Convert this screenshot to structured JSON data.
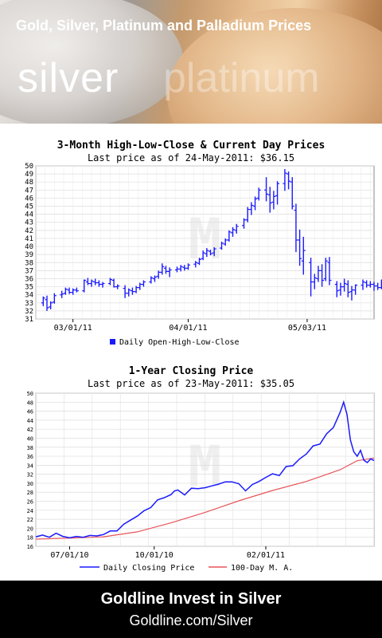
{
  "banner": {
    "title": "Gold, Silver, Platinum and Palladium Prices",
    "word_active": "silver",
    "word_inactive": "platinum"
  },
  "chart1": {
    "title": "3-Month High-Low-Close & Current Day Prices",
    "subtitle": "Last price as of 24-May-2011: $36.15",
    "legend": "Daily Open-High-Low-Close"
  },
  "chart2": {
    "title": "1-Year Closing Price",
    "subtitle": "Last price as of 23-May-2011: $35.05",
    "legend_closing": "Daily Closing Price",
    "legend_ma": "100-Day M. A."
  },
  "footer": {
    "title": "Goldline Invest in Silver",
    "url": "Goldline.com/Silver"
  },
  "colors": {
    "series": "#1a1aff",
    "moving_average": "#e8555a",
    "footer_bg": "#000000"
  },
  "chart_data": [
    {
      "type": "bar",
      "subtype": "ohlc",
      "title": "3-Month High-Low-Close & Current Day Prices",
      "subtitle": "Last price as of 24-May-2011: $36.15",
      "ylim": [
        31,
        50
      ],
      "yticks": [
        31,
        32,
        33,
        34,
        35,
        36,
        37,
        38,
        39,
        40,
        41,
        42,
        43,
        44,
        45,
        46,
        47,
        48,
        49,
        50
      ],
      "xticks": [
        {
          "label": "03/01/11",
          "day": 10
        },
        {
          "label": "04/01/11",
          "day": 41
        },
        {
          "label": "05/03/11",
          "day": 73
        }
      ],
      "xrange": [
        0,
        91
      ],
      "legend": "Daily Open-High-Low-Close",
      "grid": true,
      "ohlc": [
        [
          2,
          33.0,
          33.8,
          32.6,
          33.6
        ],
        [
          3,
          33.4,
          33.9,
          32.0,
          32.4
        ],
        [
          4,
          32.5,
          33.2,
          32.2,
          33.0
        ],
        [
          5,
          33.1,
          34.2,
          32.9,
          33.9
        ],
        [
          7,
          34.0,
          34.5,
          33.6,
          34.1
        ],
        [
          8,
          34.2,
          34.9,
          34.0,
          34.7
        ],
        [
          9,
          34.6,
          34.9,
          34.1,
          34.3
        ],
        [
          10,
          34.3,
          34.8,
          34.0,
          34.6
        ],
        [
          11,
          34.6,
          34.9,
          34.3,
          34.5
        ],
        [
          13,
          34.5,
          35.9,
          34.3,
          35.8
        ],
        [
          14,
          35.6,
          36.1,
          35.2,
          35.4
        ],
        [
          15,
          35.4,
          35.9,
          35.0,
          35.7
        ],
        [
          16,
          35.6,
          36.0,
          35.2,
          35.5
        ],
        [
          17,
          35.5,
          35.8,
          35.0,
          35.3
        ],
        [
          18,
          35.3,
          35.6,
          34.9,
          35.4
        ],
        [
          20,
          35.4,
          36.1,
          35.2,
          35.9
        ],
        [
          21,
          35.8,
          36.0,
          34.9,
          35.0
        ],
        [
          22,
          35.0,
          35.3,
          34.7,
          35.1
        ],
        [
          24,
          34.8,
          35.2,
          33.6,
          34.2
        ],
        [
          25,
          34.2,
          34.8,
          33.8,
          34.6
        ],
        [
          26,
          34.5,
          34.9,
          34.0,
          34.4
        ],
        [
          27,
          34.4,
          35.1,
          34.2,
          34.9
        ],
        [
          28,
          34.9,
          35.5,
          34.6,
          35.3
        ],
        [
          29,
          35.3,
          35.8,
          35.0,
          35.6
        ],
        [
          31,
          35.6,
          36.3,
          35.4,
          36.1
        ],
        [
          32,
          36.0,
          36.4,
          35.6,
          36.2
        ],
        [
          33,
          36.3,
          37.0,
          36.0,
          36.8
        ],
        [
          34,
          36.8,
          37.9,
          36.5,
          37.5
        ],
        [
          35,
          37.3,
          37.6,
          36.6,
          36.9
        ],
        [
          36,
          36.9,
          37.4,
          36.2,
          37.1
        ],
        [
          38,
          37.1,
          37.5,
          36.8,
          37.2
        ],
        [
          39,
          37.2,
          37.7,
          36.9,
          37.5
        ],
        [
          40,
          37.4,
          37.7,
          37.0,
          37.3
        ],
        [
          41,
          37.3,
          37.9,
          37.1,
          37.7
        ],
        [
          43,
          37.8,
          38.2,
          37.4,
          38.0
        ],
        [
          44,
          37.9,
          38.6,
          37.7,
          38.4
        ],
        [
          45,
          38.5,
          39.5,
          38.3,
          39.2
        ],
        [
          46,
          39.1,
          39.8,
          38.7,
          39.5
        ],
        [
          47,
          39.4,
          39.6,
          38.9,
          39.1
        ],
        [
          48,
          39.2,
          39.9,
          38.8,
          39.7
        ],
        [
          50,
          39.8,
          40.6,
          39.6,
          40.4
        ],
        [
          51,
          40.3,
          41.0,
          40.1,
          40.8
        ],
        [
          52,
          40.8,
          42.0,
          40.6,
          41.8
        ],
        [
          53,
          41.7,
          42.4,
          41.2,
          42.1
        ],
        [
          54,
          42.0,
          42.8,
          41.6,
          42.5
        ],
        [
          56,
          42.6,
          43.5,
          42.2,
          43.3
        ],
        [
          57,
          43.3,
          44.9,
          43.0,
          44.6
        ],
        [
          58,
          44.6,
          45.5,
          43.9,
          45.1
        ],
        [
          59,
          45.0,
          46.2,
          44.5,
          45.9
        ],
        [
          60,
          46.0,
          47.3,
          45.7,
          47.0
        ],
        [
          62,
          47.0,
          48.6,
          45.6,
          46.5
        ],
        [
          63,
          46.4,
          47.4,
          44.2,
          45.4
        ],
        [
          64,
          45.5,
          46.9,
          44.6,
          46.2
        ],
        [
          65,
          46.3,
          48.1,
          45.2,
          47.8
        ],
        [
          67,
          47.8,
          49.6,
          46.9,
          49.1
        ],
        [
          68,
          49.0,
          49.3,
          47.1,
          48.1
        ],
        [
          69,
          48.0,
          48.6,
          44.6,
          45.0
        ],
        [
          70,
          44.5,
          45.3,
          39.3,
          40.8
        ],
        [
          71,
          40.8,
          42.1,
          37.6,
          38.5
        ],
        [
          72,
          38.2,
          41.2,
          36.5,
          39.5
        ],
        [
          74,
          38.0,
          38.6,
          33.8,
          35.6
        ],
        [
          75,
          35.6,
          36.6,
          34.7,
          36.1
        ],
        [
          76,
          36.0,
          37.6,
          35.6,
          37.0
        ],
        [
          77,
          37.0,
          37.8,
          35.0,
          35.8
        ],
        [
          78,
          36.0,
          38.6,
          35.7,
          38.2
        ],
        [
          79,
          38.0,
          38.7,
          35.2,
          35.8
        ],
        [
          81,
          35.3,
          35.7,
          33.7,
          34.5
        ],
        [
          82,
          34.6,
          35.5,
          33.9,
          35.0
        ],
        [
          83,
          35.0,
          36.0,
          34.4,
          35.4
        ],
        [
          84,
          35.3,
          35.8,
          33.7,
          34.3
        ],
        [
          85,
          34.4,
          35.1,
          33.3,
          34.6
        ],
        [
          86,
          34.6,
          35.3,
          34.0,
          35.2
        ],
        [
          88,
          35.2,
          35.9,
          34.6,
          35.6
        ],
        [
          89,
          35.5,
          35.8,
          34.9,
          35.2
        ],
        [
          90,
          35.2,
          35.7,
          34.9,
          35.3
        ],
        [
          91,
          35.3,
          35.6,
          34.5,
          35.1
        ],
        [
          92,
          35.1,
          35.5,
          34.6,
          34.9
        ],
        [
          93,
          34.9,
          35.9,
          34.7,
          35.7
        ],
        [
          94,
          35.7,
          36.5,
          35.5,
          36.15
        ]
      ]
    },
    {
      "type": "line",
      "title": "1-Year Closing Price",
      "subtitle": "Last price as of 23-May-2011: $35.05",
      "ylim": [
        16,
        50
      ],
      "yticks": [
        16,
        18,
        20,
        22,
        24,
        26,
        28,
        30,
        32,
        34,
        36,
        38,
        40,
        42,
        44,
        46,
        48,
        50
      ],
      "xrange": [
        0,
        100
      ],
      "xticks": [
        {
          "label": "07/01/10",
          "x": 10
        },
        {
          "label": "10/01/10",
          "x": 35
        },
        {
          "label": "02/01/11",
          "x": 68
        }
      ],
      "grid": true,
      "series": [
        {
          "name": "Daily Closing Price",
          "color": "#1a1aff",
          "x": [
            0,
            2,
            4,
            6,
            8,
            10,
            12,
            14,
            16,
            18,
            20,
            22,
            24,
            26,
            28,
            30,
            32,
            34,
            36,
            38,
            40,
            41,
            42,
            44,
            46,
            48,
            50,
            52,
            54,
            56,
            58,
            60,
            62,
            64,
            66,
            68,
            70,
            72,
            74,
            76,
            78,
            80,
            82,
            84,
            86,
            88,
            90,
            91,
            92,
            93,
            94,
            95,
            96,
            97,
            98,
            99,
            100
          ],
          "y": [
            18.1,
            18.5,
            18.0,
            18.9,
            18.2,
            17.9,
            18.2,
            18.0,
            18.4,
            18.3,
            18.6,
            19.4,
            19.4,
            20.9,
            21.8,
            22.7,
            23.9,
            24.6,
            26.3,
            26.8,
            27.5,
            28.3,
            28.5,
            27.4,
            28.9,
            28.8,
            29.0,
            29.4,
            29.8,
            30.3,
            30.3,
            29.9,
            28.3,
            29.7,
            30.4,
            31.3,
            32.1,
            31.7,
            33.7,
            33.9,
            35.4,
            36.5,
            38.3,
            38.7,
            41.0,
            42.4,
            45.8,
            48.0,
            45.3,
            39.6,
            37.0,
            36.0,
            37.3,
            35.1,
            34.6,
            35.4,
            35.05
          ]
        },
        {
          "name": "100-Day M. A.",
          "color": "#e8555a",
          "x": [
            0,
            10,
            20,
            30,
            40,
            50,
            60,
            70,
            80,
            90,
            95,
            100
          ],
          "y": [
            17.6,
            17.8,
            18.1,
            19.2,
            21.2,
            23.5,
            26.1,
            28.4,
            30.4,
            33.0,
            35.0,
            35.6
          ]
        }
      ]
    }
  ]
}
